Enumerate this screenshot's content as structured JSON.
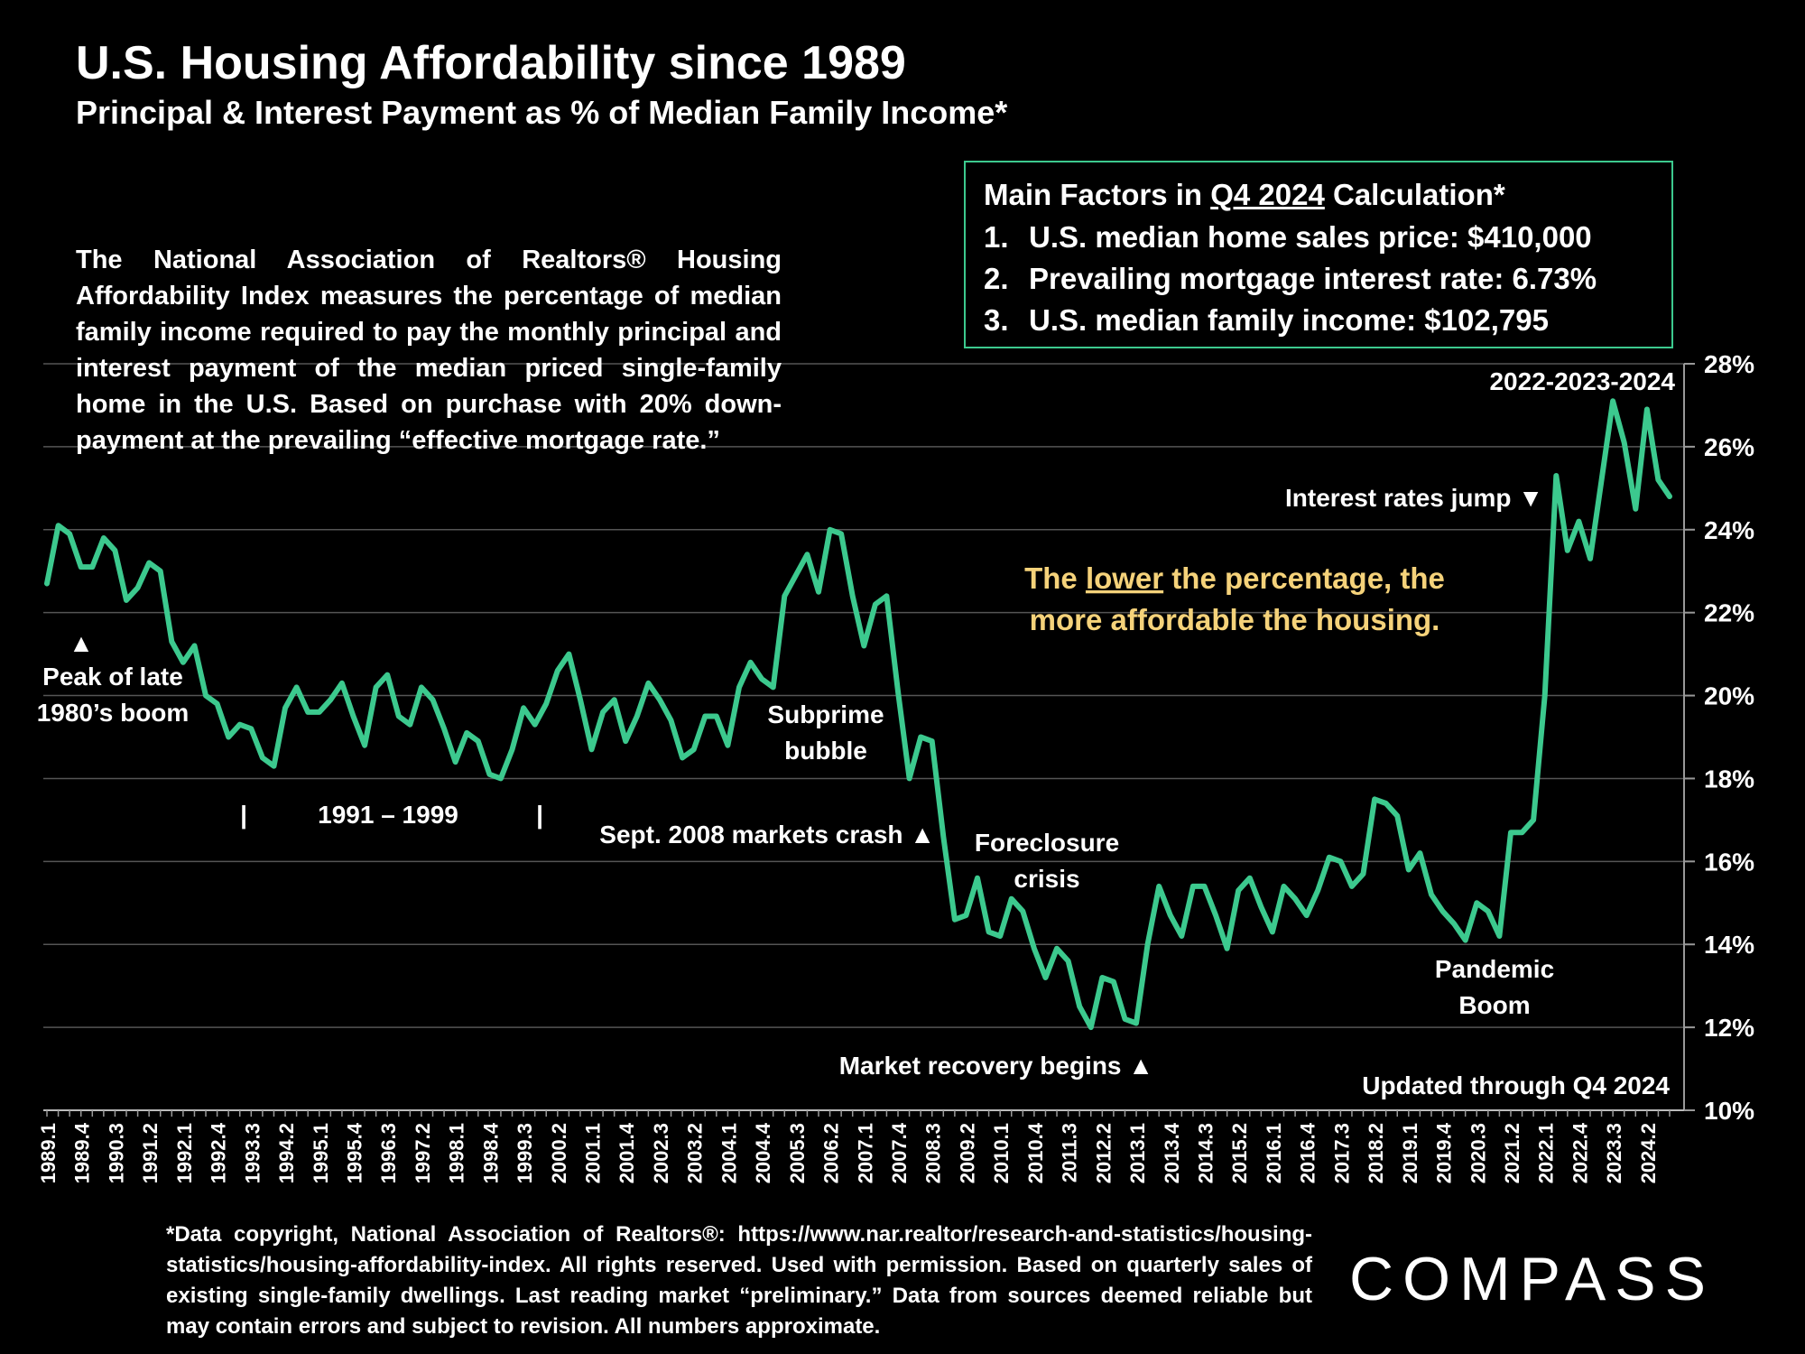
{
  "header": {
    "title": "U.S. Housing Affordability since 1989",
    "subtitle": "Principal & Interest Payment as % of Median Family Income*"
  },
  "description": "The National Association of Realtors® Housing Affordability Index measures the percentage of median family income required to pay the monthly principal and interest payment of the median priced single-family home in the U.S. Based on purchase with 20% down-payment at the prevailing “effective mortgage rate.”",
  "factors": {
    "heading_prefix": "Main Factors in ",
    "heading_period": "Q4 2024",
    "heading_suffix": " Calculation*",
    "items": [
      {
        "num": "1.",
        "text": "U.S. median home sales price:  $410,000"
      },
      {
        "num": "2.",
        "text": "Prevailing mortgage interest rate:  6.73%"
      },
      {
        "num": "3.",
        "text": "U.S. median family income:  $102,795"
      }
    ]
  },
  "footnote": "*Data copyright, National Association of Realtors®: https://www.nar.realtor/research-and-statistics/housing-statistics/housing-affordability-index. All rights reserved. Used with permission. Based on quarterly sales of existing single-family dwellings. Last reading market “preliminary.” Data from sources deemed reliable but may contain errors and subject to revision. All numbers approximate.",
  "logo": "COMPASS",
  "colors": {
    "line": "#3cc98e",
    "highlight": "#f5d27a",
    "grid": "#555555",
    "text": "#ffffff",
    "background": "#000000"
  },
  "chart_data": {
    "type": "line",
    "title": "U.S. Housing Affordability since 1989",
    "ylabel": "Principal & Interest Payment as % of Median Family Income",
    "ylim": [
      10,
      28
    ],
    "yticks": [
      10,
      12,
      14,
      16,
      18,
      20,
      22,
      24,
      26,
      28
    ],
    "ytick_labels": [
      "10%",
      "12%",
      "14%",
      "16%",
      "18%",
      "20%",
      "22%",
      "24%",
      "26%",
      "28%"
    ],
    "xtick_labels": [
      "1989.1",
      "1989.4",
      "1990.3",
      "1991.2",
      "1992.1",
      "1992.4",
      "1993.3",
      "1994.2",
      "1995.1",
      "1995.4",
      "1996.3",
      "1997.2",
      "1998.1",
      "1998.4",
      "1999.3",
      "2000.2",
      "2001.1",
      "2001.4",
      "2002.3",
      "2003.2",
      "2004.1",
      "2004.4",
      "2005.3",
      "2006.2",
      "2007.1",
      "2007.4",
      "2008.3",
      "2009.2",
      "2010.1",
      "2010.4",
      "2011.3",
      "2012.2",
      "2013.1",
      "2013.4",
      "2014.3",
      "2015.2",
      "2016.1",
      "2016.4",
      "2017.3",
      "2018.2",
      "2019.1",
      "2019.4",
      "2020.3",
      "2021.2",
      "2022.1",
      "2022.4",
      "2023.3",
      "2024.2"
    ],
    "series": [
      {
        "name": "P&I payment as % of median family income",
        "quarter_start": "1989.1",
        "values": [
          22.7,
          24.1,
          23.9,
          23.1,
          23.1,
          23.8,
          23.5,
          22.3,
          22.6,
          23.2,
          23.0,
          21.3,
          20.8,
          21.2,
          20.0,
          19.8,
          19.0,
          19.3,
          19.2,
          18.5,
          18.3,
          19.7,
          20.2,
          19.6,
          19.6,
          19.9,
          20.3,
          19.5,
          18.8,
          20.2,
          20.5,
          19.5,
          19.3,
          20.2,
          19.9,
          19.2,
          18.4,
          19.1,
          18.9,
          18.1,
          18.0,
          18.7,
          19.7,
          19.3,
          19.8,
          20.6,
          21.0,
          19.9,
          18.7,
          19.6,
          19.9,
          18.9,
          19.5,
          20.3,
          19.9,
          19.4,
          18.5,
          18.7,
          19.5,
          19.5,
          18.8,
          20.2,
          20.8,
          20.4,
          20.2,
          22.4,
          22.9,
          23.4,
          22.5,
          24.0,
          23.9,
          22.4,
          21.2,
          22.2,
          22.4,
          20.1,
          18.0,
          19.0,
          18.9,
          16.6,
          14.6,
          14.7,
          15.6,
          14.3,
          14.2,
          15.1,
          14.8,
          13.9,
          13.2,
          13.9,
          13.6,
          12.5,
          12.0,
          13.2,
          13.1,
          12.2,
          12.1,
          14.0,
          15.4,
          14.7,
          14.2,
          15.4,
          15.4,
          14.7,
          13.9,
          15.3,
          15.6,
          14.9,
          14.3,
          15.4,
          15.1,
          14.7,
          15.3,
          16.1,
          16.0,
          15.4,
          15.7,
          17.5,
          17.4,
          17.1,
          15.8,
          16.2,
          15.2,
          14.8,
          14.5,
          14.1,
          15.0,
          14.8,
          14.2,
          16.7,
          16.7,
          17.0,
          20.0,
          25.3,
          23.5,
          24.2,
          23.3,
          25.2,
          27.1,
          26.1,
          24.5,
          26.9,
          25.2,
          24.8
        ]
      }
    ],
    "annotations": {
      "peak_label": "Peak of late 1980’s boom",
      "peak_arrow": "▲",
      "range_label": "1991 – 1999",
      "range_bar": "|",
      "subprime": "Subprime bubble",
      "crash": "Sept. 2008 markets crash ▲",
      "foreclosure": "Foreclosure crisis",
      "recovery": "Market recovery begins ▲",
      "pandemic": "Pandemic Boom",
      "rates_jump": "Interest rates jump ▼",
      "recent": "2022-2023-2024",
      "updated": "Updated through Q4 2024",
      "message_pre": "The ",
      "message_em": "lower",
      "message_mid": " the percentage, the",
      "message_line2": "more affordable the housing."
    }
  }
}
